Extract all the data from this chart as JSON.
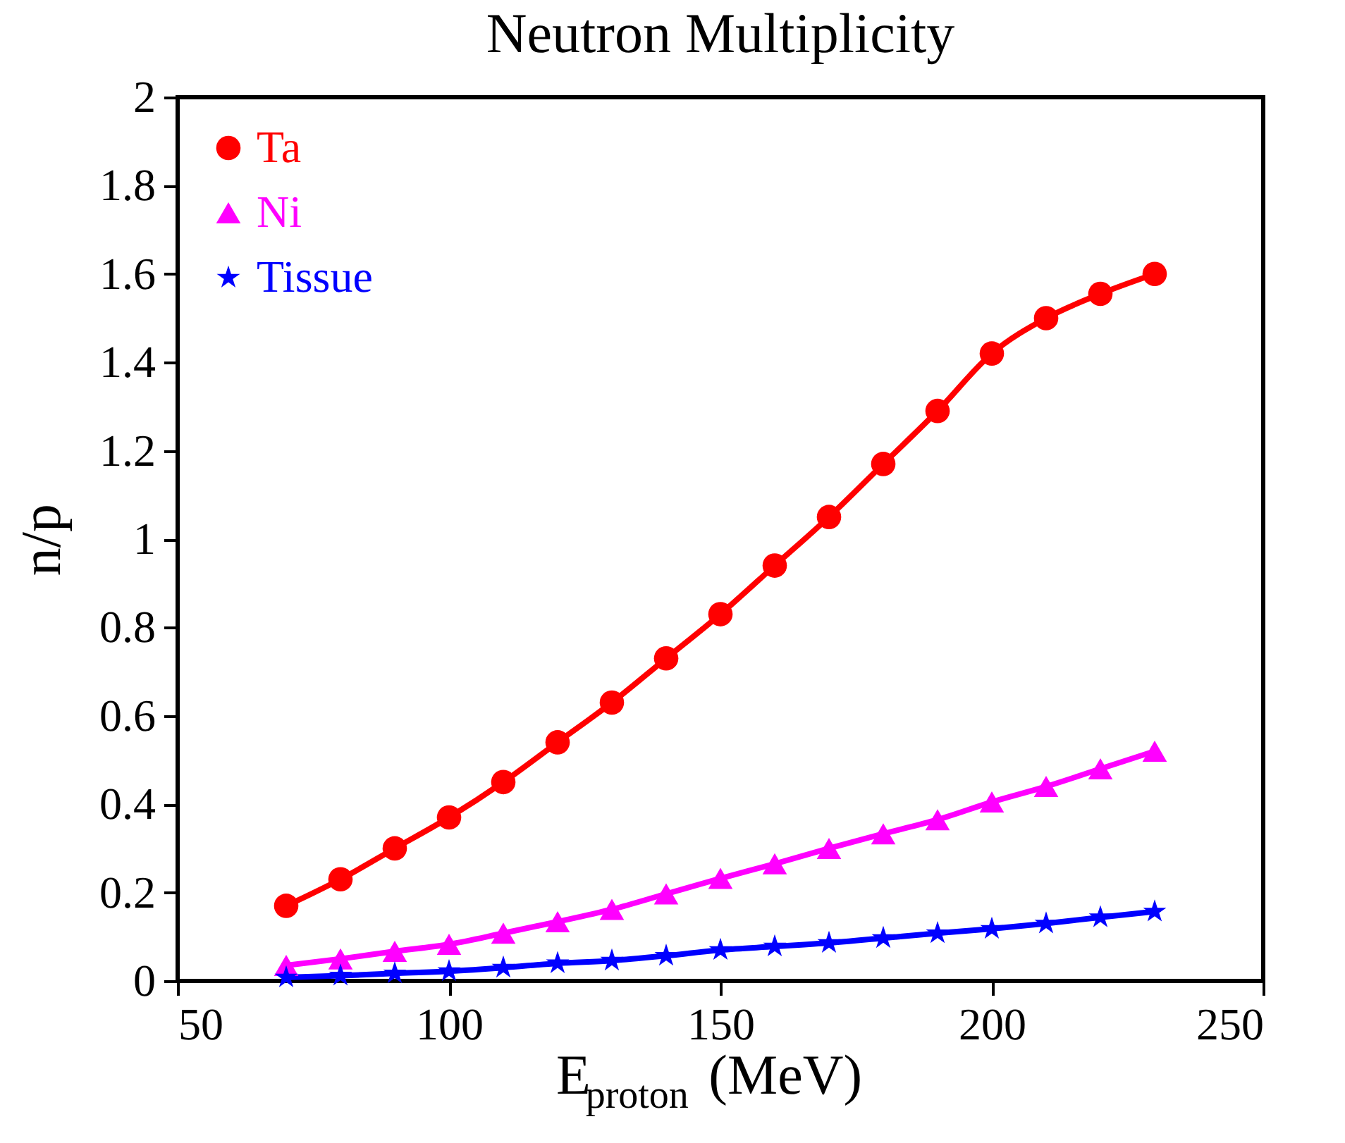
{
  "chart_data": {
    "type": "line",
    "title": "Neutron Multiplicity",
    "xlabel": "E$_{proton}$ (MeV)",
    "ylabel": "n/p",
    "x": [
      70,
      80,
      90,
      100,
      110,
      120,
      130,
      140,
      150,
      160,
      170,
      180,
      190,
      200,
      210,
      220,
      230
    ],
    "series": [
      {
        "name": "Ta",
        "color": "#ff0000",
        "marker": "circle",
        "values": [
          0.17,
          0.23,
          0.3,
          0.37,
          0.45,
          0.54,
          0.63,
          0.73,
          0.83,
          0.94,
          1.05,
          1.17,
          1.29,
          1.42,
          1.5,
          1.555,
          1.6
        ]
      },
      {
        "name": "Ni",
        "color": "#ff00ff",
        "marker": "triangle",
        "values": [
          0.035,
          0.05,
          0.067,
          0.083,
          0.108,
          0.134,
          0.162,
          0.197,
          0.232,
          0.265,
          0.3,
          0.333,
          0.365,
          0.405,
          0.44,
          0.48,
          0.52
        ]
      },
      {
        "name": "Tissue",
        "color": "#0000ff",
        "marker": "star",
        "values": [
          0.008,
          0.012,
          0.017,
          0.022,
          0.03,
          0.04,
          0.046,
          0.057,
          0.07,
          0.078,
          0.086,
          0.097,
          0.108,
          0.118,
          0.13,
          0.144,
          0.157
        ]
      }
    ],
    "xlim": [
      50,
      250
    ],
    "xticks": [
      50,
      100,
      150,
      200,
      250
    ],
    "ylim": [
      0,
      2
    ],
    "yticks": [
      0,
      0.2,
      0.4,
      0.6,
      0.8,
      1,
      1.2,
      1.4,
      1.6,
      1.8,
      2
    ],
    "grid": false,
    "legend": "top left",
    "line_style": "solid"
  }
}
